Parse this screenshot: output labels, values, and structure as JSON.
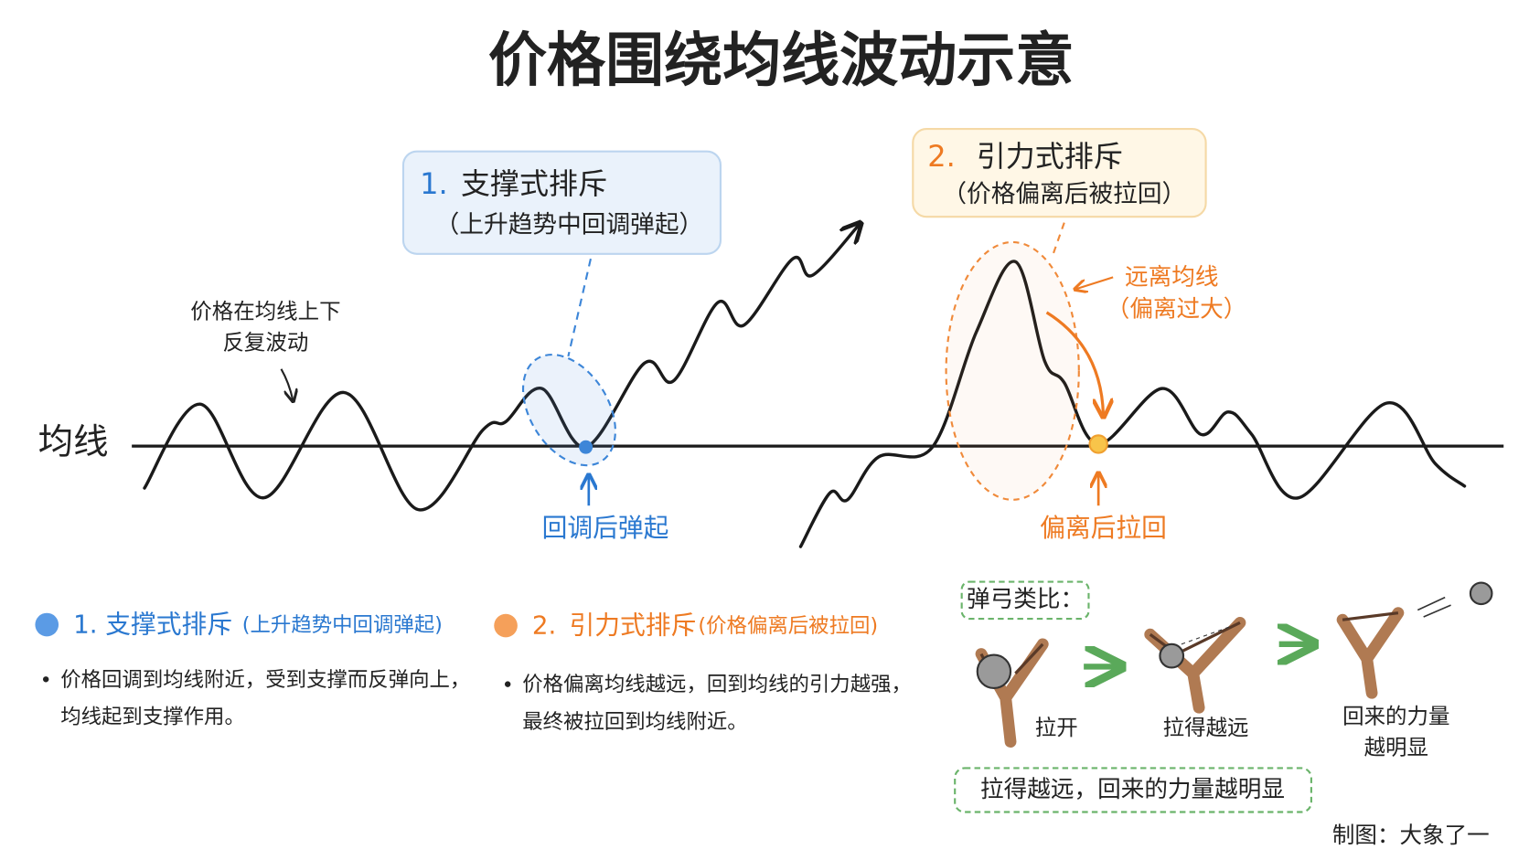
{
  "header": {
    "title": "价格围绕均线波动示意"
  },
  "chart": {
    "mean_line_label": "均线",
    "annotation": [
      "价格在均线上下",
      "反复波动"
    ],
    "callouts": [
      {
        "number": "1.",
        "title": "支撑式排斥",
        "subtitle": "（上升趋势中回调弹起）",
        "point_label": "回调后弹起"
      },
      {
        "number": "2.",
        "title": "引力式排斥",
        "subtitle": "（价格偏离后被拉回）",
        "point_label": "偏离后拉回",
        "note": [
          "远离均线",
          "（偏离过大）"
        ]
      }
    ]
  },
  "legend": [
    {
      "number": "1.",
      "title": "支撑式排斥",
      "detail": "(上升趋势中回调弹起)",
      "bullet": [
        "价格回调到均线附近，受到支撑而反弹向上，",
        "均线起到支撑作用。"
      ]
    },
    {
      "number": "2.",
      "title": "引力式排斥",
      "detail": "(价格偏离后被拉回)",
      "bullet": [
        "价格偏离均线越远，回到均线的引力越强，",
        "最终被拉回到均线附近。"
      ]
    }
  ],
  "analogy": {
    "title": "弹弓类比：",
    "steps": [
      [
        "拉开"
      ],
      [
        "拉得越远"
      ],
      [
        "回来的力量",
        "越明显"
      ]
    ],
    "summary": "拉得越远，回来的力量越明显"
  },
  "footer": {
    "credit": "制图：大象了一"
  }
}
